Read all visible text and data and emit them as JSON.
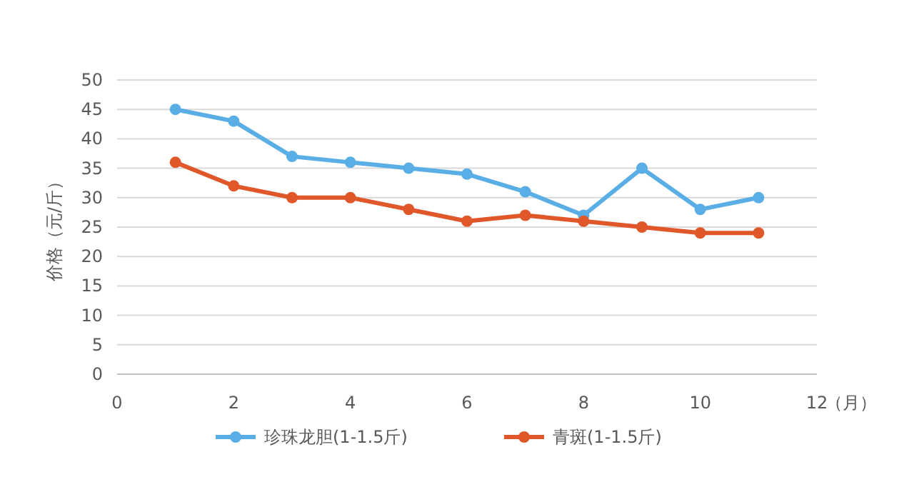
{
  "chart_data": {
    "type": "line",
    "xlabel": "（月）",
    "ylabel": "价格（元/斤）",
    "x": [
      1,
      2,
      3,
      4,
      5,
      6,
      7,
      8,
      9,
      10,
      11
    ],
    "series": [
      {
        "name": "珍珠龙胆(1-1.5斤)",
        "color": "#5aaee6",
        "values": [
          45,
          43,
          37,
          36,
          35,
          34,
          31,
          27,
          35,
          28,
          30
        ]
      },
      {
        "name": "青斑(1-1.5斤)",
        "color": "#e0572a",
        "values": [
          36,
          32,
          30,
          30,
          28,
          26,
          27,
          26,
          25,
          24,
          24
        ]
      }
    ],
    "xlim": [
      0,
      12
    ],
    "xticks": [
      0,
      2,
      4,
      6,
      8,
      10,
      12
    ],
    "ylim": [
      0,
      50
    ],
    "yticks": [
      0,
      5,
      10,
      15,
      20,
      25,
      30,
      35,
      40,
      45,
      50
    ],
    "grid": "y",
    "legend": "bottom",
    "marker": "circle",
    "line_style": "solid"
  }
}
